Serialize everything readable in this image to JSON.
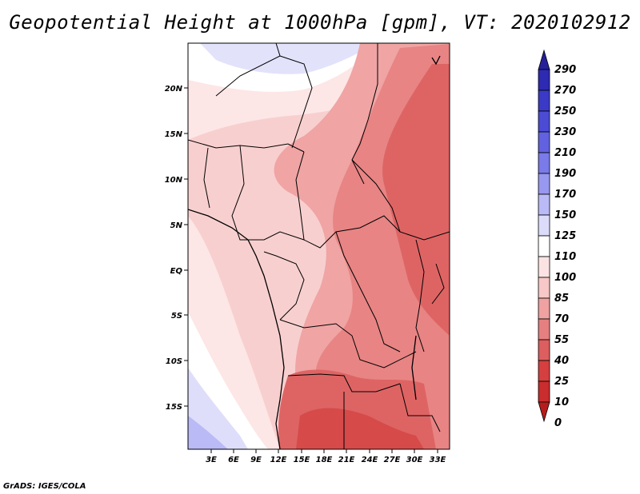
{
  "title": "Geopotential Height at 1000hPa [gpm], VT: 2020102912",
  "footer": "GrADS: IGES/COLA",
  "map": {
    "lat_ticks": [
      "20N",
      "15N",
      "10N",
      "5N",
      "EQ",
      "5S",
      "10S",
      "15S"
    ],
    "lon_ticks": [
      "3E",
      "6E",
      "9E",
      "12E",
      "15E",
      "18E",
      "21E",
      "24E",
      "27E",
      "30E",
      "33E"
    ]
  },
  "colorbar": {
    "labels": [
      "290",
      "270",
      "250",
      "230",
      "210",
      "190",
      "170",
      "150",
      "125",
      "110",
      "100",
      "85",
      "70",
      "55",
      "40",
      "25",
      "10",
      "0"
    ],
    "colors": [
      "#25209a",
      "#2e2ab2",
      "#3b3ac6",
      "#4b4bd4",
      "#6262e0",
      "#7a7ae8",
      "#9898f0",
      "#babaf6",
      "#dcdcfa",
      "#ffffff",
      "#fce3e3",
      "#f8c7c7",
      "#f0a2a2",
      "#e68080",
      "#dd5e5e",
      "#d53f3f",
      "#c92d2d",
      "#b71c1c"
    ]
  }
}
